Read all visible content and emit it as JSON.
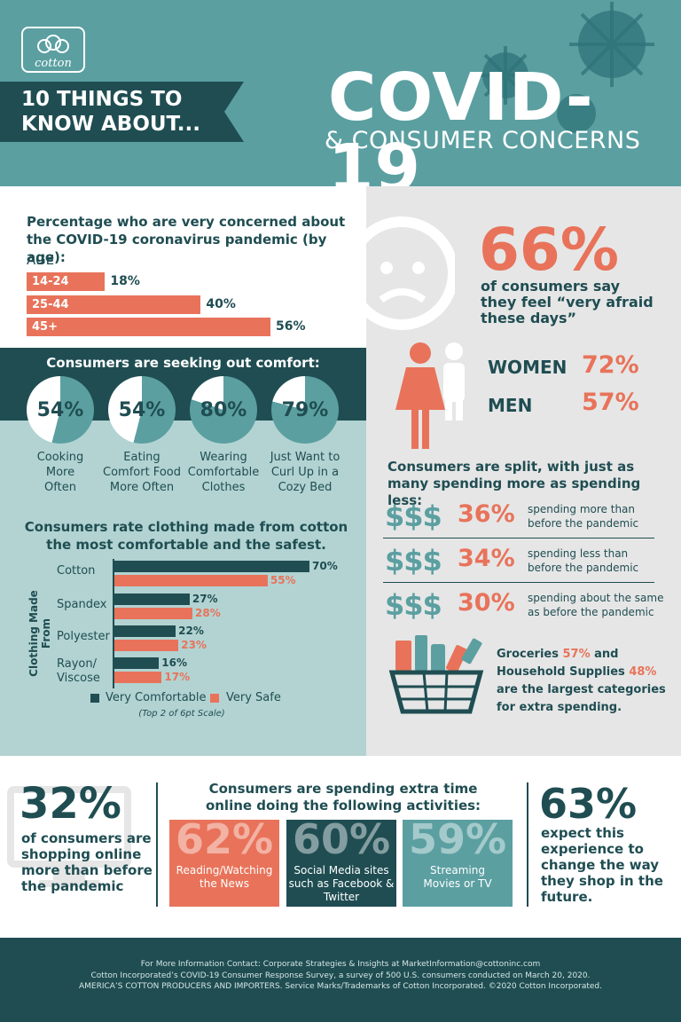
{
  "header": {
    "logo_text": "cotton",
    "banner_line1": "10 THINGS TO",
    "banner_line2": "KNOW ABOUT...",
    "title": "COVID-19",
    "subtitle": "& CONSUMER CONCERNS"
  },
  "concern": {
    "title": "Percentage who are very concerned about the COVID-19 coronavirus pandemic (by age):",
    "age_label": "AGE",
    "rows": [
      {
        "label": "14-24",
        "value": "18%",
        "pct": 18
      },
      {
        "label": "25-44",
        "value": "40%",
        "pct": 40
      },
      {
        "label": "45+",
        "value": "56%",
        "pct": 56
      }
    ]
  },
  "comfort": {
    "title": "Consumers are seeking out comfort:",
    "items": [
      {
        "value": "54%",
        "pct": 54,
        "label1": "Cooking",
        "label2": "More",
        "label3": "Often"
      },
      {
        "value": "54%",
        "pct": 54,
        "label1": "Eating",
        "label2": "Comfort Food",
        "label3": "More Often"
      },
      {
        "value": "80%",
        "pct": 80,
        "label1": "Wearing",
        "label2": "Comfortable",
        "label3": "Clothes"
      },
      {
        "value": "79%",
        "pct": 79,
        "label1": "Just Want to",
        "label2": "Curl Up in a",
        "label3": "Cozy Bed"
      }
    ]
  },
  "chart_data": {
    "type": "bar",
    "title": "Consumers rate clothing made from cotton the most comfortable and the safest.",
    "ylabel": "Clothing Made From",
    "categories": [
      "Cotton",
      "Spandex",
      "Polyester",
      "Rayon/ Viscose"
    ],
    "series": [
      {
        "name": "Very Comfortable",
        "values": [
          70,
          27,
          22,
          16
        ],
        "labels": [
          "70%",
          "27%",
          "22%",
          "16%"
        ],
        "color": "#1f4d52"
      },
      {
        "name": "Very Safe",
        "values": [
          55,
          28,
          23,
          17
        ],
        "labels": [
          "55%",
          "28%",
          "23%",
          "17%"
        ],
        "color": "#e8735a"
      }
    ],
    "note": "(Top 2 of 6pt Scale)"
  },
  "afraid": {
    "value": "66%",
    "line1": "of consumers say",
    "line2": "they feel “very afraid",
    "line3": "these days”",
    "women_label": "WOMEN",
    "women_value": "72%",
    "men_label": "MEN",
    "men_value": "57%"
  },
  "spending": {
    "title": "Consumers are split, with just as many spending more as spending less:",
    "symbol": "$$$",
    "rows": [
      {
        "value": "36%",
        "line1": "spending more than",
        "line2": "before the pandemic"
      },
      {
        "value": "34%",
        "line1": "spending less than",
        "line2": "before the pandemic"
      },
      {
        "value": "30%",
        "line1": "spending about the same",
        "line2": "as before the pandemic"
      }
    ],
    "groceries_label": "Groceries",
    "groceries_value": "57%",
    "and_text": "and",
    "household_label": "Household Supplies",
    "household_value": "48%",
    "tail1": "are the largest categories",
    "tail2": "for extra spending."
  },
  "online": {
    "value": "32%",
    "line1": "of consumers are",
    "line2": "shopping online",
    "line3": "more than before",
    "line4": "the pandemic",
    "title1": "Consumers are spending extra time",
    "title2": "online doing the following activities:",
    "activities": [
      {
        "value": "62%",
        "line1": "Reading/Watching",
        "line2": "the News",
        "line3": "",
        "color": "#e8735a"
      },
      {
        "value": "60%",
        "line1": "Social Media sites",
        "line2": "such as Facebook &",
        "line3": "Twitter",
        "color": "#1f4d52"
      },
      {
        "value": "59%",
        "line1": "Streaming",
        "line2": "Movies or TV",
        "line3": "",
        "color": "#5b9fa1"
      }
    ],
    "expect_value": "63%",
    "expect1": "expect this",
    "expect2": "experience to",
    "expect3": "change the way",
    "expect4": "they shop in the",
    "expect5": "future."
  },
  "footer": {
    "line1": "For More Information Contact: Corporate Strategies & Insights at MarketInformation@cottoninc.com",
    "line2": "Cotton Incorporated’s COVID-19 Consumer Response Survey, a survey of 500 U.S. consumers conducted on March 20, 2020.",
    "line3": "AMERICA’S COTTON PRODUCERS AND IMPORTERS. Service Marks/Trademarks of Cotton Incorporated. ©2020 Cotton Incorporated."
  },
  "colors": {
    "teal": "#5b9fa1",
    "dark": "#1f4d52",
    "coral": "#e8735a",
    "light": "#b2d3d2",
    "gray": "#e6e6e6"
  }
}
